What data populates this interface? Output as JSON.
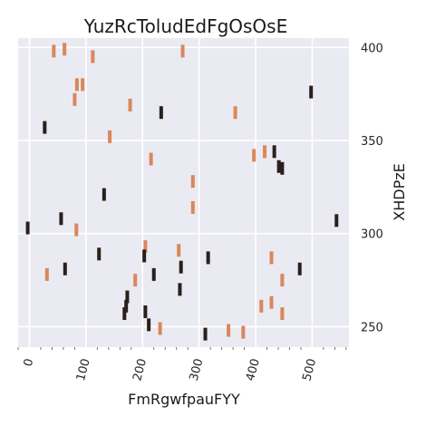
{
  "chart_data": {
    "type": "scatter",
    "title": "YuzRcToludEdFgOsOsE",
    "xlabel": "FmRgwfpauFYY",
    "ylabel": "XHDPzE",
    "xlim": [
      -20,
      565
    ],
    "ylim": [
      239,
      405
    ],
    "x_ticks": [
      "0",
      "100",
      "200",
      "300",
      "400",
      "500"
    ],
    "x_tick_values": [
      0,
      100,
      200,
      300,
      400,
      500
    ],
    "y_ticks": [
      "250",
      "300",
      "350",
      "400"
    ],
    "y_tick_values": [
      250,
      300,
      350,
      400
    ],
    "y_axis_side": "right",
    "x_tick_rotation": -75,
    "grid": true,
    "marker": "vertical-bar",
    "background": "#eaeaf2",
    "series": [
      {
        "color": "#d9875c",
        "points": [
          [
            43,
            398
          ],
          [
            62,
            399
          ],
          [
            112,
            395
          ],
          [
            271,
            398
          ],
          [
            84,
            380
          ],
          [
            94,
            380
          ],
          [
            80,
            372
          ],
          [
            178,
            369
          ],
          [
            364,
            365
          ],
          [
            142,
            352
          ],
          [
            215,
            340
          ],
          [
            397,
            342
          ],
          [
            416,
            344
          ],
          [
            289,
            328
          ],
          [
            289,
            314
          ],
          [
            83,
            302
          ],
          [
            205,
            293
          ],
          [
            264,
            291
          ],
          [
            428,
            287
          ],
          [
            31,
            278
          ],
          [
            187,
            275
          ],
          [
            447,
            275
          ],
          [
            410,
            261
          ],
          [
            428,
            263
          ],
          [
            447,
            257
          ],
          [
            231,
            249
          ],
          [
            352,
            248
          ],
          [
            378,
            247
          ]
        ]
      },
      {
        "color": "#2a1f1a",
        "points": [
          [
            498,
            376
          ],
          [
            233,
            365
          ],
          [
            27,
            357
          ],
          [
            433,
            344
          ],
          [
            441,
            336
          ],
          [
            447,
            335
          ],
          [
            132,
            321
          ],
          [
            56,
            308
          ],
          [
            543,
            307
          ],
          [
            -3,
            303
          ],
          [
            123,
            289
          ],
          [
            203,
            288
          ],
          [
            316,
            287
          ],
          [
            63,
            281
          ],
          [
            268,
            282
          ],
          [
            478,
            281
          ],
          [
            220,
            278
          ],
          [
            266,
            270
          ],
          [
            173,
            266
          ],
          [
            171,
            261
          ],
          [
            168,
            257
          ],
          [
            205,
            258
          ],
          [
            211,
            251
          ],
          [
            311,
            246
          ]
        ]
      }
    ]
  }
}
